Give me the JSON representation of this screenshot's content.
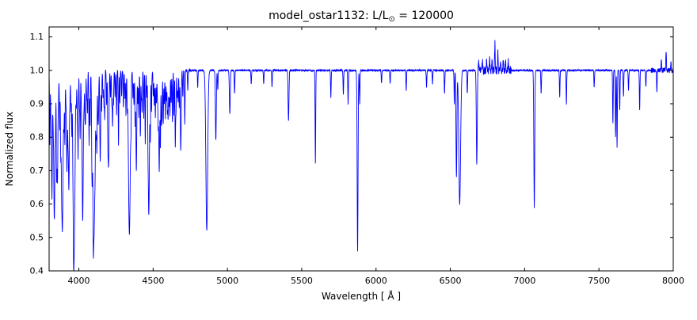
{
  "chart_data": {
    "type": "line",
    "title": "model_ostar1132: L/L⊙ = 120000",
    "title_parts": {
      "prefix": "model_ostar1132: L/L",
      "sub": "⊙",
      "suffix": " = 120000"
    },
    "xlabel": "Wavelength [ Å ]",
    "ylabel": "Normalized flux",
    "xlim": [
      3800,
      8000
    ],
    "ylim": [
      0.4,
      1.13
    ],
    "x_ticks": [
      4000,
      4500,
      5000,
      5500,
      6000,
      6500,
      7000,
      7500,
      8000
    ],
    "y_ticks": [
      0.4,
      0.5,
      0.6,
      0.7,
      0.8,
      0.9,
      1.0,
      1.1
    ],
    "line_color": "#0000ff",
    "background": "#ffffff",
    "grid": false,
    "legend": "none",
    "continuum_flux": 1.0,
    "noise": {
      "blue_limit": 4750,
      "blue_amplitude": 0.006,
      "red_amplitude": 0.0025,
      "bump_region": [
        6680,
        6910
      ],
      "bump_amplitude": 0.012,
      "red_tail_region": [
        7850,
        8000
      ],
      "red_tail_amplitude": 0.008
    },
    "absorption_lines": [
      [
        3805,
        0.78,
        2
      ],
      [
        3812,
        0.88,
        2
      ],
      [
        3819,
        0.62,
        3
      ],
      [
        3827,
        0.9,
        2
      ],
      [
        3835,
        0.55,
        4
      ],
      [
        3843,
        0.86,
        2
      ],
      [
        3850,
        0.72,
        2
      ],
      [
        3856,
        0.66,
        3
      ],
      [
        3863,
        0.92,
        2
      ],
      [
        3871,
        0.82,
        2
      ],
      [
        3878,
        0.78,
        2
      ],
      [
        3883,
        0.9,
        2
      ],
      [
        3889,
        0.52,
        5
      ],
      [
        3900,
        0.86,
        2
      ],
      [
        3906,
        0.78,
        2
      ],
      [
        3913,
        0.92,
        2
      ],
      [
        3920,
        0.7,
        3
      ],
      [
        3927,
        0.84,
        2
      ],
      [
        3933,
        0.64,
        3
      ],
      [
        3940,
        0.92,
        2
      ],
      [
        3947,
        0.88,
        2
      ],
      [
        3953,
        0.8,
        2
      ],
      [
        3959,
        0.86,
        2
      ],
      [
        3964,
        0.68,
        3
      ],
      [
        3970,
        0.52,
        5
      ],
      [
        3983,
        0.9,
        2
      ],
      [
        3990,
        0.86,
        2
      ],
      [
        3995,
        0.74,
        2
      ],
      [
        4004,
        0.9,
        2
      ],
      [
        4009,
        0.8,
        2
      ],
      [
        4017,
        0.92,
        2
      ],
      [
        4026,
        0.55,
        4
      ],
      [
        4035,
        0.92,
        2
      ],
      [
        4041,
        0.88,
        2
      ],
      [
        4045,
        0.86,
        2
      ],
      [
        4053,
        0.92,
        2
      ],
      [
        4058,
        0.88,
        2
      ],
      [
        4069,
        0.78,
        2
      ],
      [
        4076,
        0.84,
        2
      ],
      [
        4089,
        0.7,
        3
      ],
      [
        4097,
        0.82,
        2
      ],
      [
        4102,
        0.5,
        6
      ],
      [
        4110,
        0.9,
        2
      ],
      [
        4116,
        0.84,
        2
      ],
      [
        4121,
        0.76,
        2
      ],
      [
        4128,
        0.88,
        2
      ],
      [
        4132,
        0.86,
        2
      ],
      [
        4144,
        0.73,
        3
      ],
      [
        4153,
        0.88,
        2
      ],
      [
        4163,
        0.92,
        2
      ],
      [
        4169,
        0.9,
        2
      ],
      [
        4174,
        0.86,
        2
      ],
      [
        4187,
        0.9,
        2
      ],
      [
        4195,
        0.85,
        2
      ],
      [
        4200,
        0.72,
        3
      ],
      [
        4213,
        0.92,
        2
      ],
      [
        4222,
        0.9,
        2
      ],
      [
        4227,
        0.84,
        2
      ],
      [
        4233,
        0.9,
        2
      ],
      [
        4244,
        0.92,
        2
      ],
      [
        4254,
        0.87,
        2
      ],
      [
        4267,
        0.78,
        2
      ],
      [
        4276,
        0.9,
        2
      ],
      [
        4288,
        0.92,
        2
      ],
      [
        4300,
        0.89,
        2
      ],
      [
        4310,
        0.92,
        2
      ],
      [
        4317,
        0.87,
        2
      ],
      [
        4326,
        0.91,
        2
      ],
      [
        4340,
        0.51,
        6
      ],
      [
        4351,
        0.89,
        2
      ],
      [
        4364,
        0.92,
        2
      ],
      [
        4371,
        0.9,
        2
      ],
      [
        4379,
        0.84,
        2
      ],
      [
        4387,
        0.7,
        3
      ],
      [
        4397,
        0.9,
        2
      ],
      [
        4404,
        0.86,
        2
      ],
      [
        4414,
        0.8,
        2
      ],
      [
        4421,
        0.92,
        2
      ],
      [
        4426,
        0.88,
        2
      ],
      [
        4437,
        0.86,
        2
      ],
      [
        4447,
        0.78,
        2
      ],
      [
        4457,
        0.92,
        2
      ],
      [
        4465,
        0.9,
        2
      ],
      [
        4471,
        0.57,
        4
      ],
      [
        4481,
        0.8,
        2
      ],
      [
        4489,
        0.88,
        2
      ],
      [
        4501,
        0.92,
        2
      ],
      [
        4508,
        0.9,
        2
      ],
      [
        4515,
        0.86,
        2
      ],
      [
        4522,
        0.9,
        2
      ],
      [
        4529,
        0.92,
        2
      ],
      [
        4534,
        0.84,
        2
      ],
      [
        4541,
        0.7,
        3
      ],
      [
        4549,
        0.78,
        2
      ],
      [
        4556,
        0.86,
        2
      ],
      [
        4560,
        0.88,
        2
      ],
      [
        4568,
        0.84,
        2
      ],
      [
        4575,
        0.9,
        2
      ],
      [
        4583,
        0.86,
        2
      ],
      [
        4590,
        0.91,
        2
      ],
      [
        4596,
        0.88,
        2
      ],
      [
        4601,
        0.86,
        2
      ],
      [
        4607,
        0.89,
        2
      ],
      [
        4613,
        0.87,
        2
      ],
      [
        4621,
        0.9,
        2
      ],
      [
        4630,
        0.84,
        2
      ],
      [
        4640,
        0.86,
        2
      ],
      [
        4649,
        0.78,
        2
      ],
      [
        4654,
        0.88,
        2
      ],
      [
        4662,
        0.92,
        2
      ],
      [
        4668,
        0.9,
        2
      ],
      [
        4676,
        0.89,
        2
      ],
      [
        4686,
        0.76,
        3
      ],
      [
        4700,
        0.92,
        2
      ],
      [
        4713,
        0.84,
        2
      ],
      [
        4733,
        0.94,
        2
      ],
      [
        4800,
        0.95,
        2
      ],
      [
        4861,
        0.52,
        6
      ],
      [
        4922,
        0.79,
        3
      ],
      [
        4935,
        0.94,
        2
      ],
      [
        5016,
        0.87,
        3
      ],
      [
        5048,
        0.93,
        2
      ],
      [
        5160,
        0.96,
        2
      ],
      [
        5244,
        0.96,
        2
      ],
      [
        5300,
        0.95,
        2
      ],
      [
        5411,
        0.85,
        3
      ],
      [
        5592,
        0.72,
        2
      ],
      [
        5696,
        0.92,
        2
      ],
      [
        5780,
        0.93,
        2
      ],
      [
        5812,
        0.9,
        2
      ],
      [
        5876,
        0.46,
        3
      ],
      [
        5890,
        0.9,
        2
      ],
      [
        6037,
        0.96,
        2
      ],
      [
        6095,
        0.96,
        2
      ],
      [
        6203,
        0.94,
        2
      ],
      [
        6340,
        0.95,
        2
      ],
      [
        6380,
        0.96,
        2
      ],
      [
        6461,
        0.93,
        2
      ],
      [
        6527,
        0.9,
        2
      ],
      [
        6541,
        0.68,
        3
      ],
      [
        6563,
        0.6,
        6
      ],
      [
        6614,
        0.93,
        2
      ],
      [
        6678,
        0.72,
        3
      ],
      [
        7065,
        0.59,
        3
      ],
      [
        7111,
        0.93,
        2
      ],
      [
        7236,
        0.92,
        2
      ],
      [
        7281,
        0.9,
        2
      ],
      [
        7468,
        0.95,
        2
      ],
      [
        7594,
        0.84,
        2
      ],
      [
        7612,
        0.8,
        2
      ],
      [
        7622,
        0.77,
        2
      ],
      [
        7640,
        0.88,
        2
      ],
      [
        7665,
        0.92,
        2
      ],
      [
        7699,
        0.94,
        2
      ],
      [
        7774,
        0.88,
        2
      ],
      [
        7816,
        0.95,
        2
      ],
      [
        7890,
        0.94,
        2
      ]
    ],
    "emission_lines": [
      [
        6690,
        1.025,
        2
      ],
      [
        6716,
        1.03,
        2
      ],
      [
        6744,
        1.035,
        2
      ],
      [
        6765,
        1.04,
        2
      ],
      [
        6780,
        1.03,
        2
      ],
      [
        6800,
        1.082,
        2
      ],
      [
        6820,
        1.055,
        2
      ],
      [
        6838,
        1.03,
        2
      ],
      [
        6856,
        1.04,
        2
      ],
      [
        6872,
        1.025,
        2
      ],
      [
        6890,
        1.03,
        2
      ],
      [
        7920,
        1.035,
        2
      ],
      [
        7952,
        1.055,
        2
      ],
      [
        7985,
        1.02,
        2
      ]
    ]
  }
}
